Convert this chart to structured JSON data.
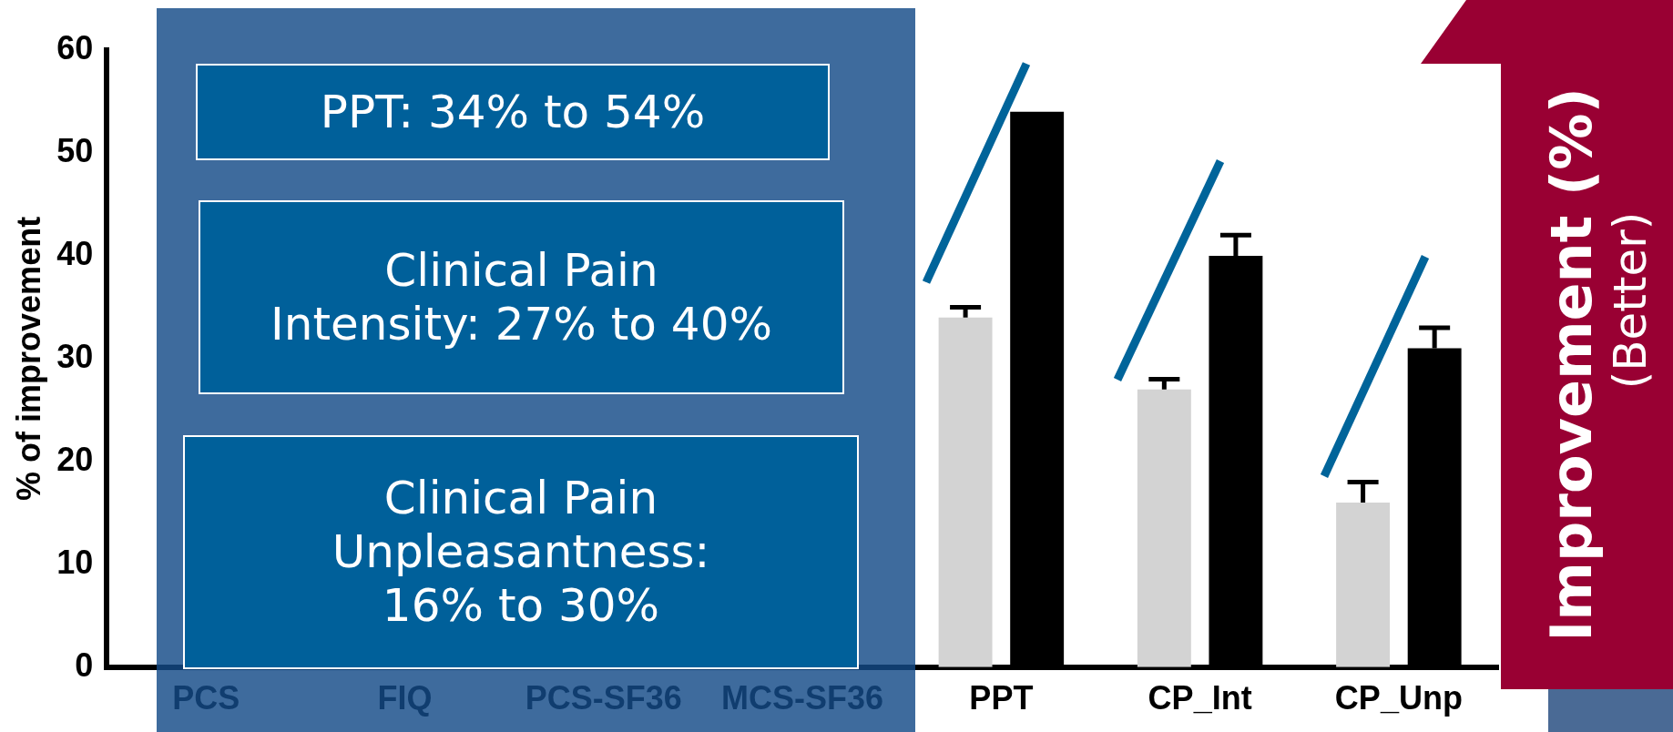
{
  "chart_data": {
    "type": "bar",
    "ylabel": "% of improvement",
    "categories": [
      "PCS",
      "FIQ",
      "PCS-SF36",
      "MCS-SF36",
      "PPT",
      "CP_Int",
      "CP_Unp"
    ],
    "series": [
      {
        "color": "#d3d3d3",
        "values": [
          null,
          null,
          null,
          null,
          34,
          27,
          16
        ],
        "errors": [
          null,
          null,
          null,
          null,
          [
            34,
            35
          ],
          [
            27,
            28
          ],
          [
            16,
            18
          ]
        ]
      },
      {
        "color": "#000000",
        "values": [
          null,
          null,
          null,
          null,
          54,
          40,
          31
        ],
        "errors": [
          null,
          null,
          null,
          null,
          null,
          [
            40,
            42
          ],
          [
            31,
            33
          ]
        ]
      }
    ],
    "ylim": [
      0,
      60
    ],
    "yticks": [
      0,
      10,
      20,
      30,
      40,
      50,
      60
    ],
    "grid": false,
    "legend": false,
    "annotations": [
      "PPT: 34% to 54%",
      "Clinical Pain\nIntensity: 27% to 40%",
      "Clinical Pain\nUnpleasantness:\n16% to 30%",
      "Improvement (%)",
      "(Better)"
    ]
  }
}
